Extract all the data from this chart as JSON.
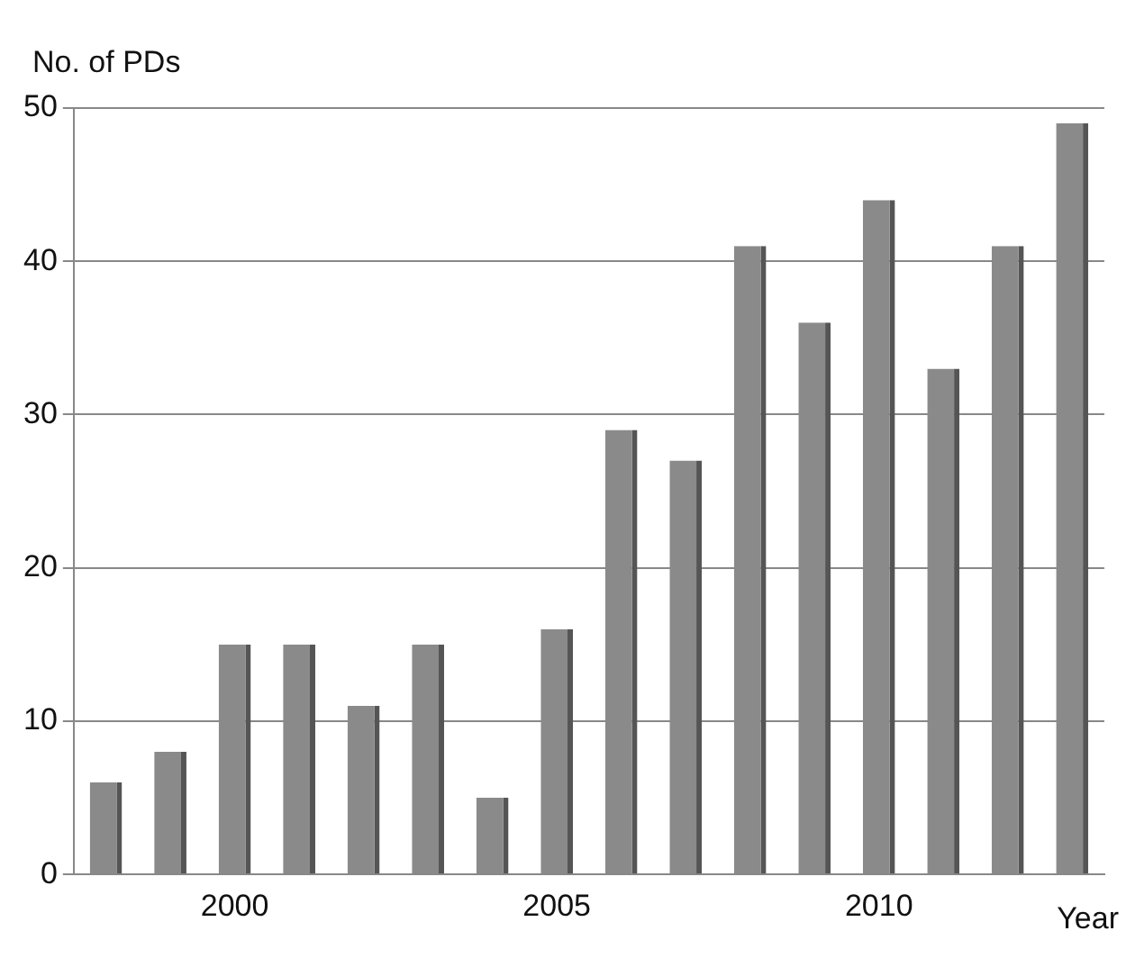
{
  "chart_data": {
    "type": "bar",
    "ylabel": "No. of PDs",
    "xlabel": "Year",
    "categories": [
      null,
      null,
      "2000",
      null,
      null,
      null,
      null,
      "2005",
      null,
      null,
      null,
      null,
      "2010",
      null,
      null,
      null
    ],
    "values": [
      6,
      8,
      15,
      15,
      11,
      15,
      5,
      16,
      29,
      27,
      41,
      36,
      44,
      33,
      41,
      49
    ],
    "color": "#8a8a8a",
    "ylim": [
      0,
      50
    ],
    "yticks": [
      0,
      10,
      20,
      30,
      40,
      50
    ],
    "grid": "y",
    "legend": false
  }
}
